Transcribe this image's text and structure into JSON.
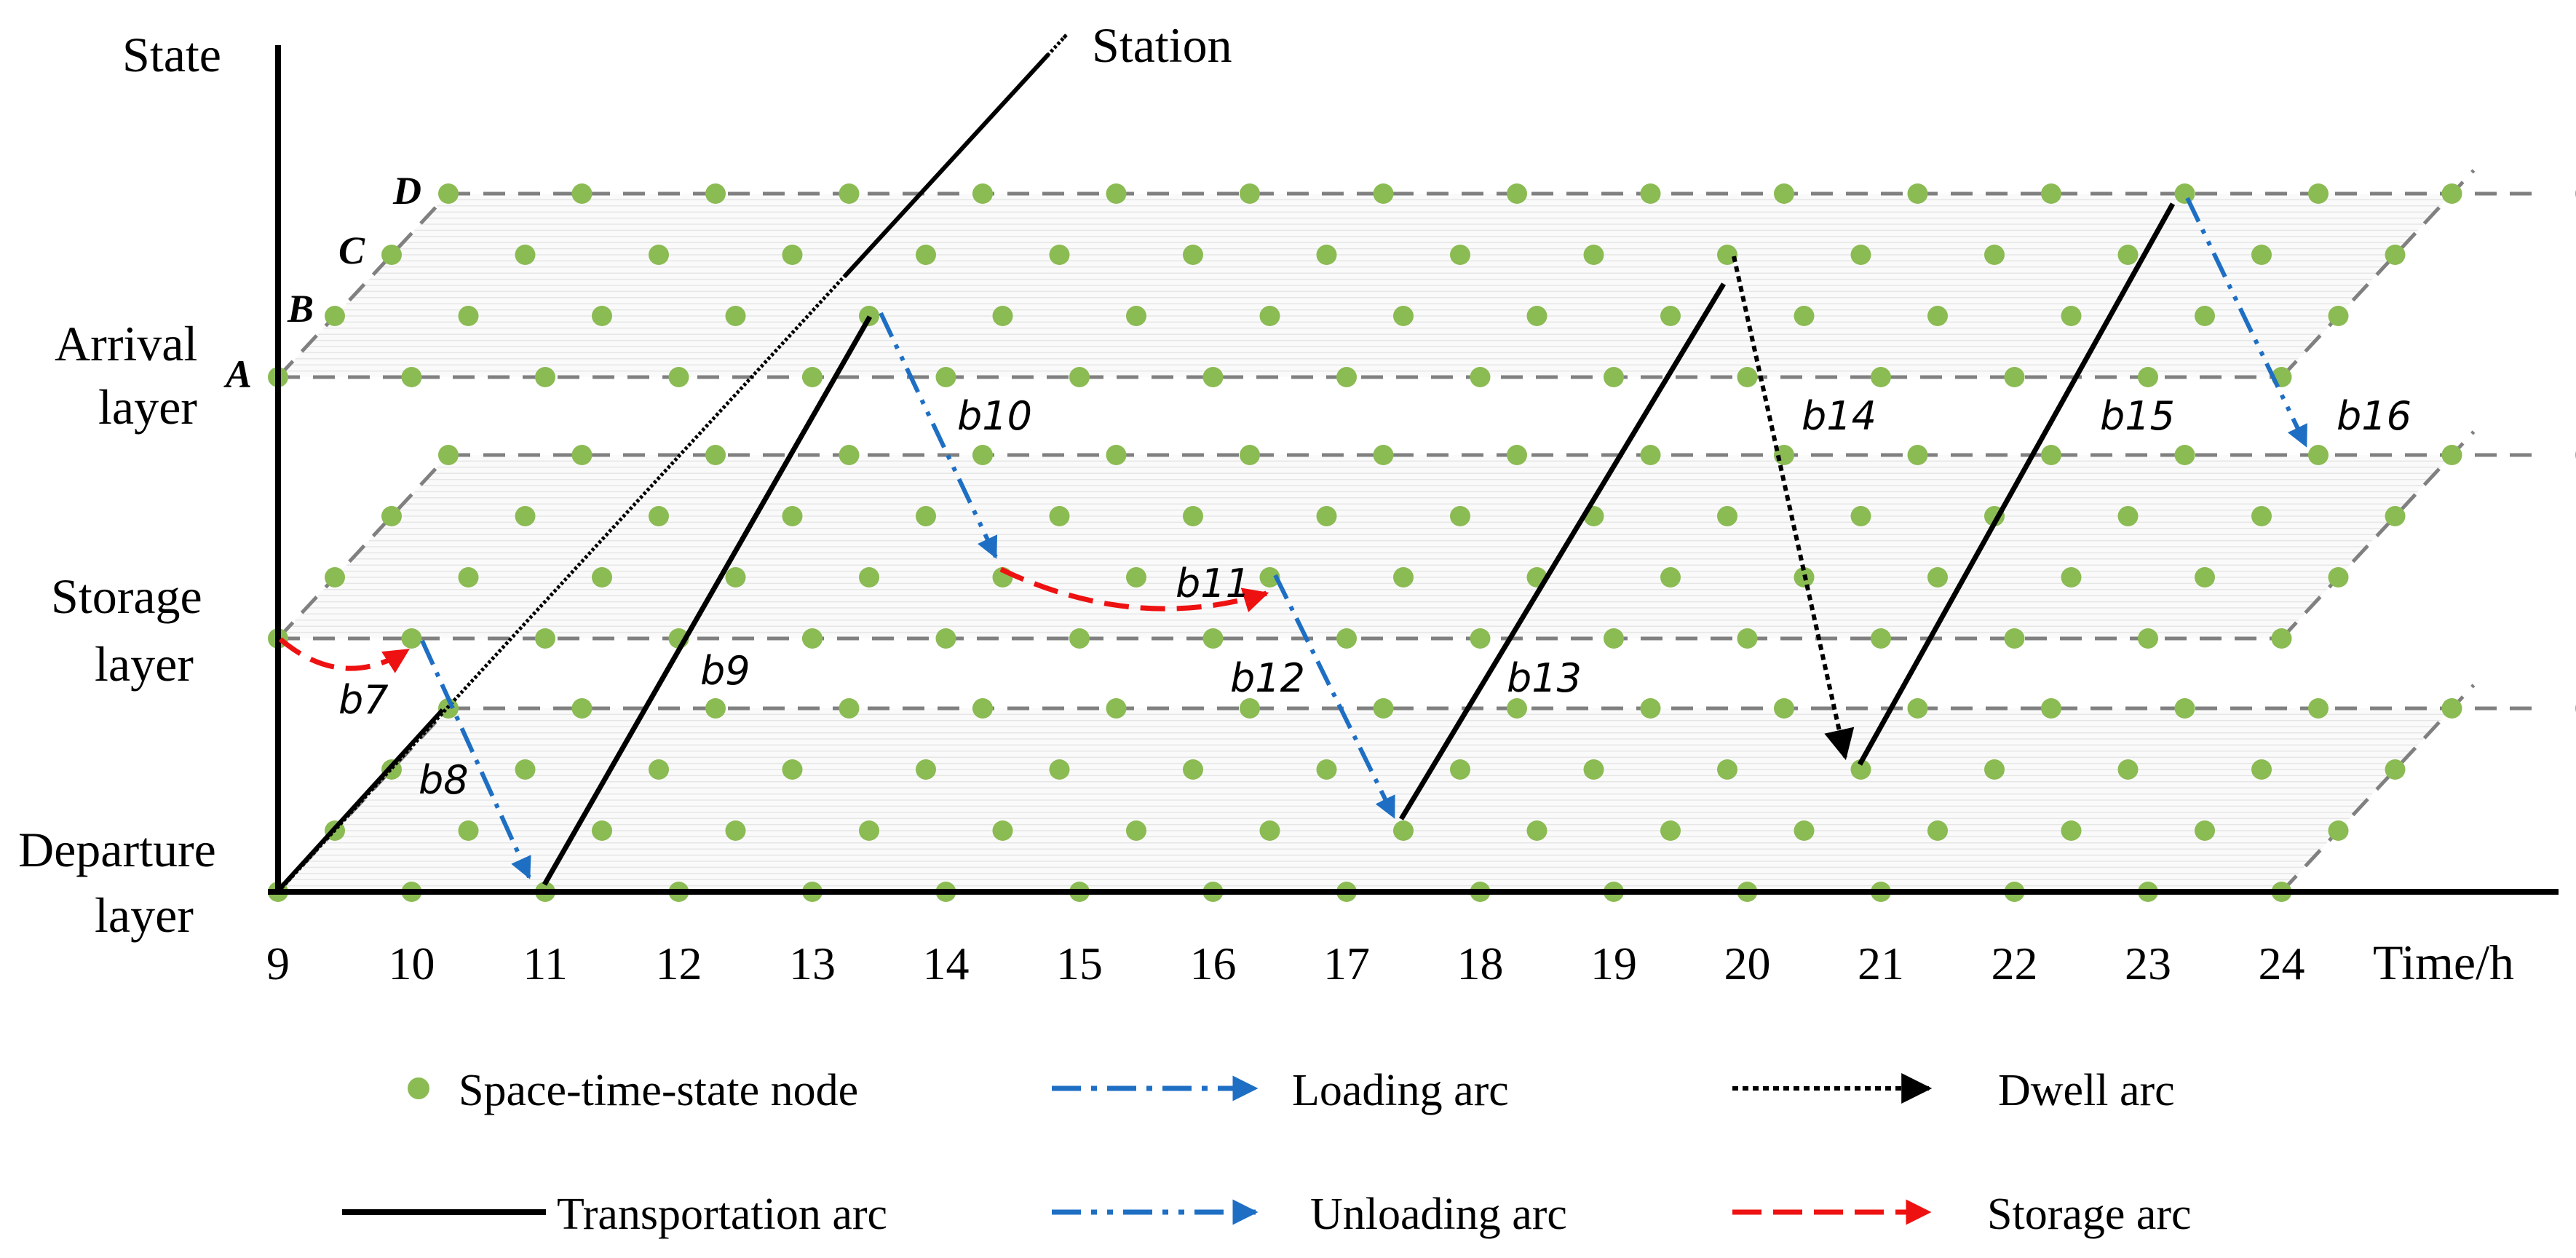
{
  "axes": {
    "y_label": "State",
    "x_label": "Time/h",
    "diagonal_label": "Station"
  },
  "layer_labels": {
    "arrival": [
      "Arrival",
      "layer"
    ],
    "storage": [
      "Storage",
      "layer"
    ],
    "departure": [
      "Departure",
      "layer"
    ]
  },
  "station_labels": [
    "A",
    "B",
    "C",
    "D"
  ],
  "time_ticks": [
    "9",
    "10",
    "11",
    "12",
    "13",
    "14",
    "15",
    "16",
    "17",
    "18",
    "19",
    "20",
    "21",
    "22",
    "23",
    "24"
  ],
  "arc_labels": {
    "b7": "b7",
    "b8": "b8",
    "b9": "b9",
    "b10": "b10",
    "b11": "b11",
    "b12": "b12",
    "b13": "b13",
    "b14": "b14",
    "b15": "b15",
    "b16": "b16"
  },
  "legend": {
    "node": "Space-time-state node",
    "loading": "Loading arc",
    "dwell": "Dwell arc",
    "transportation": "Transportation arc",
    "unloading": "Unloading arc",
    "storage": "Storage arc"
  },
  "colors": {
    "node": "#8bbb53",
    "grid": "#808080",
    "axis": "#000000",
    "loading": "#1e6fc4",
    "storage": "#ee1111",
    "transport": "#000000",
    "dwell": "#000000"
  }
}
